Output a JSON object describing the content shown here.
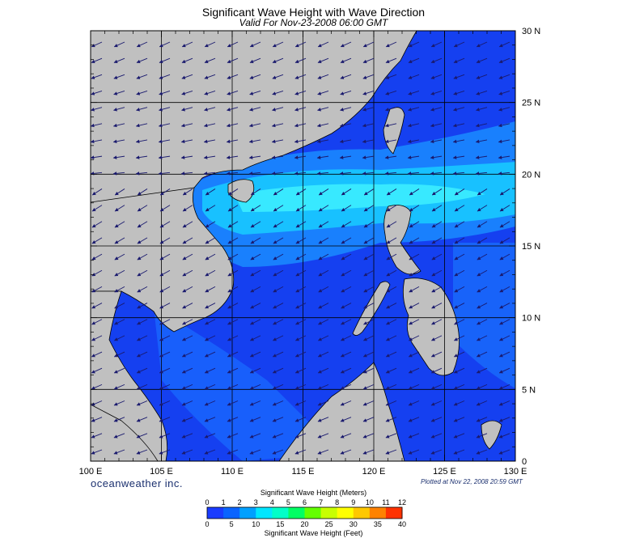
{
  "title": "Significant Wave Height with Wave Direction",
  "subtitle": "Valid For Nov-23-2008 06:00 GMT",
  "map": {
    "lon_range": [
      100,
      130
    ],
    "lat_range": [
      0,
      30
    ],
    "lon_ticks": [
      "100 E",
      "105 E",
      "110 E",
      "115 E",
      "120 E",
      "125 E",
      "130 E"
    ],
    "lat_ticks": [
      "30 N",
      "25 N",
      "20 N",
      "15 N",
      "10 N",
      "5 N",
      "0"
    ],
    "land_color": "#c0c0c0",
    "grid_color": "#000000",
    "arrow_color": "#1a1a6e"
  },
  "branding": "oceanweather inc.",
  "plotted_note": "Plotted at Nov 22, 2008 20:59 GMT",
  "legend": {
    "title_meters": "Significant Wave Height (Meters)",
    "title_feet": "Significant Wave Height (Feet)",
    "meter_labels": [
      "0",
      "1",
      "2",
      "3",
      "4",
      "5",
      "6",
      "7",
      "8",
      "9",
      "10",
      "11",
      "12"
    ],
    "feet_labels": [
      "0",
      "5",
      "10",
      "15",
      "20",
      "25",
      "30",
      "35",
      "40"
    ],
    "colors": [
      "#1a3cff",
      "#0a64ff",
      "#00a0ff",
      "#00e6ff",
      "#00ffc8",
      "#00ff64",
      "#64ff00",
      "#c8ff00",
      "#ffff00",
      "#ffc800",
      "#ff8200",
      "#ff3200"
    ]
  }
}
